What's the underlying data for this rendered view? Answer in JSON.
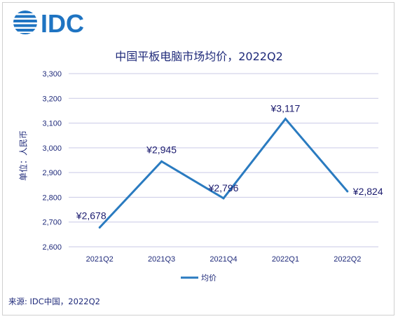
{
  "brand": {
    "logo_text": "IDC",
    "color": "#1f74c2"
  },
  "chart_data": {
    "type": "line",
    "title": "中国平板电脑市场均价，2022Q2",
    "ylabel": "单位：人民币",
    "xlabel": "",
    "categories": [
      "2021Q2",
      "2021Q3",
      "2021Q4",
      "2022Q1",
      "2022Q2"
    ],
    "series": [
      {
        "name": "均价",
        "values": [
          2678,
          2945,
          2796,
          3117,
          2824
        ],
        "data_labels": [
          "¥2,678",
          "¥2,945",
          "¥2,796",
          "¥3,117",
          "¥2,824"
        ],
        "color": "#2a7bc0"
      }
    ],
    "ylim": [
      2600,
      3300
    ],
    "yticks": [
      "2,600",
      "2,700",
      "2,800",
      "2,900",
      "3,000",
      "3,100",
      "3,200",
      "3,300"
    ],
    "grid": true,
    "legend": "bottom"
  },
  "source": "来源: IDC中国，2022Q2"
}
